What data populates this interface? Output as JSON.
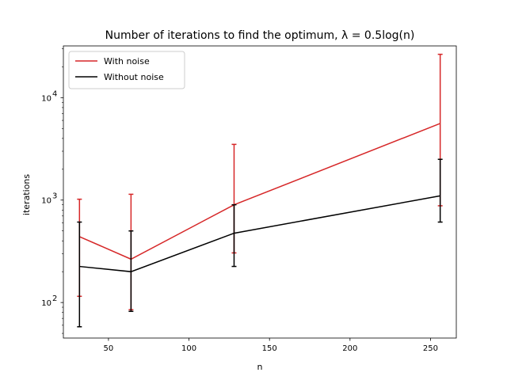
{
  "chart_data": {
    "type": "line",
    "title": "Number of iterations to find the optimum, λ = 0.5log(n)",
    "xlabel": "n",
    "ylabel": "iterations",
    "x": [
      32,
      64,
      128,
      256
    ],
    "xlim": [
      22,
      266
    ],
    "xticks": [
      50,
      100,
      150,
      200,
      250
    ],
    "yscale": "log",
    "ylim": [
      45,
      32000
    ],
    "yticks": [
      {
        "value": 100,
        "base": "10",
        "exp": "2"
      },
      {
        "value": 1000,
        "base": "10",
        "exp": "3"
      },
      {
        "value": 10000,
        "base": "10",
        "exp": "4"
      }
    ],
    "grid": false,
    "legend_position": "top-left",
    "series": [
      {
        "name": "With noise",
        "color": "#d62728",
        "values": [
          440,
          265,
          900,
          5600
        ],
        "err_low": [
          115,
          85,
          305,
          880
        ],
        "err_high": [
          1020,
          1140,
          3500,
          26500
        ]
      },
      {
        "name": "Without noise",
        "color": "#000000",
        "values": [
          225,
          200,
          475,
          1100
        ],
        "err_low": [
          58,
          82,
          225,
          610
        ],
        "err_high": [
          610,
          500,
          900,
          2500
        ]
      }
    ]
  }
}
